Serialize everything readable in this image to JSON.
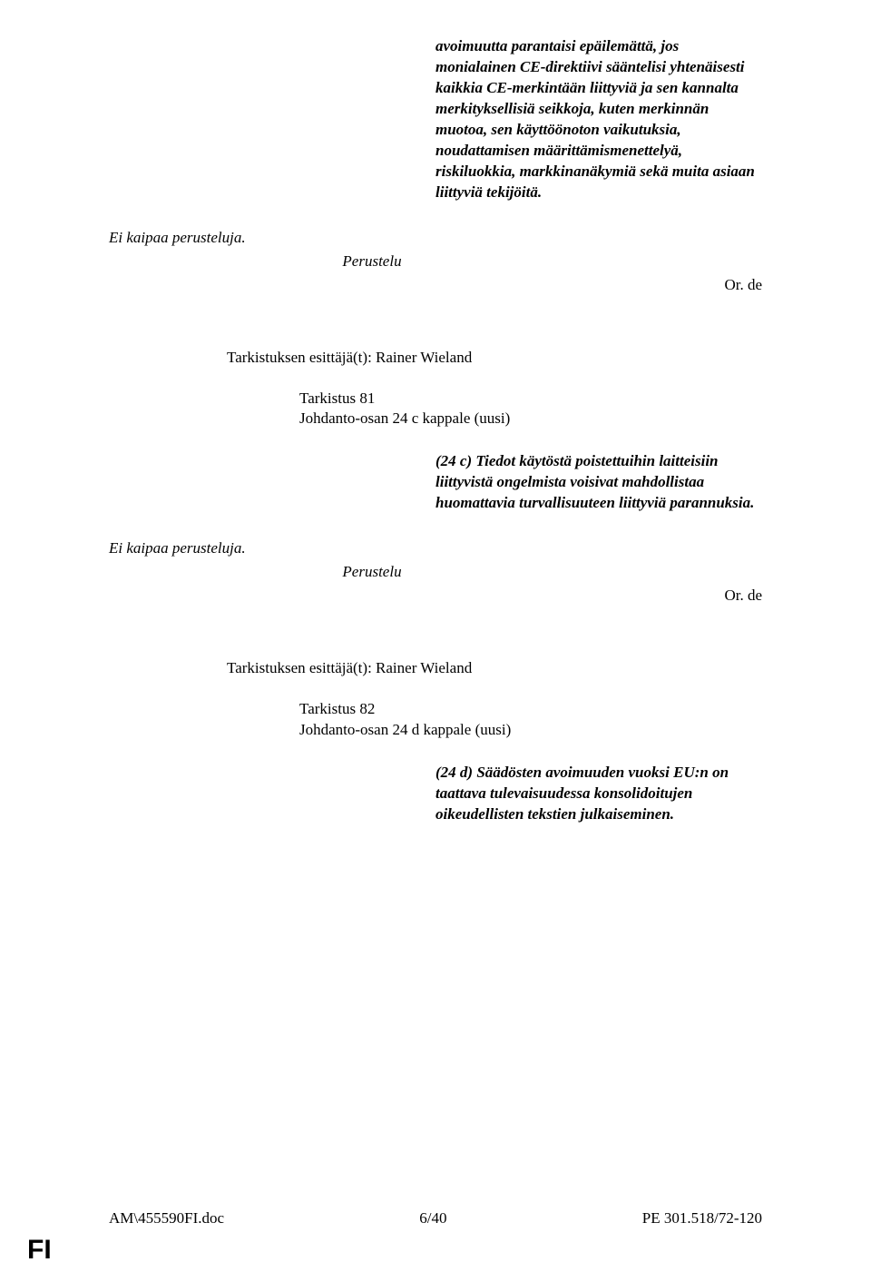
{
  "top_text": "avoimuutta parantaisi epäilemättä, jos monialainen CE-direktiivi sääntelisi yhtenäisesti kaikkia CE-merkintään liittyviä ja sen kannalta merkityksellisiä seikkoja, kuten merkinnän muotoa, sen käyttöönoton vaikutuksia, noudattamisen määrittämismenettelyä, riskiluokkia, markkinanäkymiä sekä muita asiaan liittyviä tekijöitä.",
  "no_justification": "Ei kaipaa perusteluja.",
  "justification_heading": "Perustelu",
  "or_de": "Or. de",
  "amendment_81": {
    "author": "Tarkistuksen esittäjä(t): Rainer Wieland",
    "title": "Tarkistus 81",
    "subtitle": "Johdanto-osan 24 c kappale (uusi)",
    "body": "(24 c) Tiedot käytöstä poistettuihin laitteisiin liittyvistä ongelmista voisivat mahdollistaa huomattavia turvallisuuteen liittyviä parannuksia."
  },
  "amendment_82": {
    "author": "Tarkistuksen esittäjä(t): Rainer Wieland",
    "title": "Tarkistus 82",
    "subtitle": "Johdanto-osan 24 d kappale (uusi)",
    "body": "(24 d) Säädösten avoimuuden vuoksi EU:n on taattava tulevaisuudessa konsolidoitujen oikeudellisten tekstien julkaiseminen."
  },
  "footer": {
    "left": "AM\\455590FI.doc",
    "center": "6/40",
    "right": "PE 301.518/72-120"
  },
  "lang": "FI"
}
